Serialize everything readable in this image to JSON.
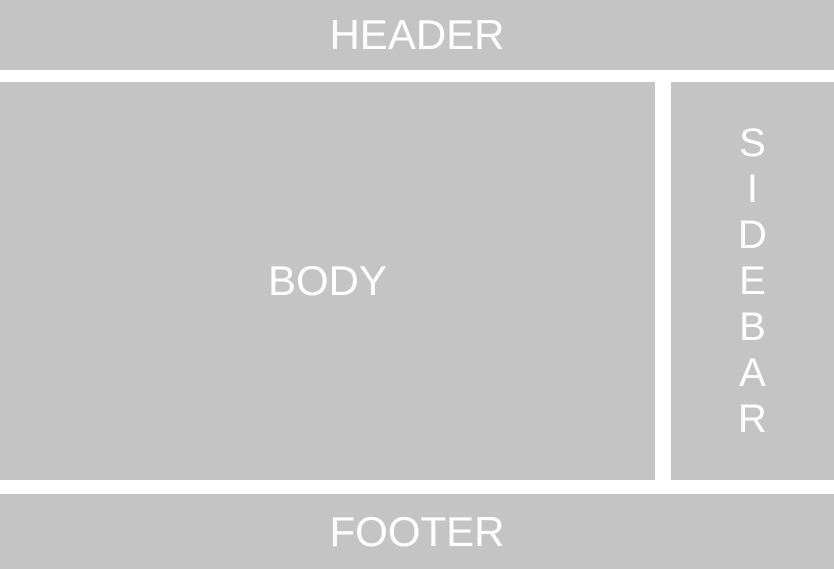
{
  "diagram": {
    "header": {
      "label": "HEADER"
    },
    "body": {
      "label": "BODY"
    },
    "sidebar": {
      "letters": [
        "S",
        "I",
        "D",
        "E",
        "B",
        "A",
        "R"
      ]
    },
    "footer": {
      "label": "FOOTER"
    }
  },
  "colors": {
    "block_fill": "#c4c4c4",
    "gutter_background": "#ffffff",
    "label_text": "#ffffff"
  }
}
